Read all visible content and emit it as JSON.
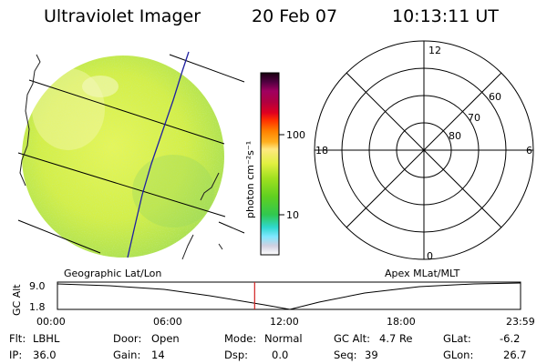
{
  "header": {
    "instrument": "Ultraviolet Imager",
    "date": "20 Feb 07",
    "time": "10:13:11 UT"
  },
  "colorbar": {
    "unit_label": "photon cm⁻²s⁻¹",
    "tick_high": "100",
    "tick_low": "10"
  },
  "polar_plot": {
    "mlt_top": "12",
    "mlt_left": "18",
    "mlt_right": "6",
    "mlt_bottom": "0",
    "lat_60": "60",
    "lat_70": "70",
    "lat_80": "80"
  },
  "coord_labels": {
    "left": "Geographic Lat/Lon",
    "right": "Apex MLat/MLT"
  },
  "timeline": {
    "ylabel": "GC Alt",
    "y_top": "9.0",
    "y_bottom": "1.8",
    "ticks": [
      "00:00",
      "06:00",
      "12:00",
      "18:00",
      "23:59"
    ],
    "current_time_hours": 10.22
  },
  "status": {
    "filter_key": "Flt:",
    "filter_value": "LBHL",
    "door_key": "Door:",
    "door_value": "Open",
    "mode_key": "Mode:",
    "mode_value": "Normal",
    "gcalt_key": "GC Alt:",
    "gcalt_value": "4.7 Re",
    "glat_key": "GLat:",
    "glat_value": "-6.2",
    "ip_key": "IP:",
    "ip_value": "36.0",
    "gain_key": "Gain:",
    "gain_value": "14",
    "dsp_key": "Dsp:",
    "dsp_value": "0.0",
    "seq_key": "Seq:",
    "seq_value": "39",
    "glon_key": "GLon:",
    "glon_value": "26.7"
  },
  "colors": {
    "disk_base": "#d8f040",
    "disk_edge": "#a8e050",
    "grid_line": "#000000",
    "meridian": "#2020a0",
    "time_marker": "#d02020"
  }
}
